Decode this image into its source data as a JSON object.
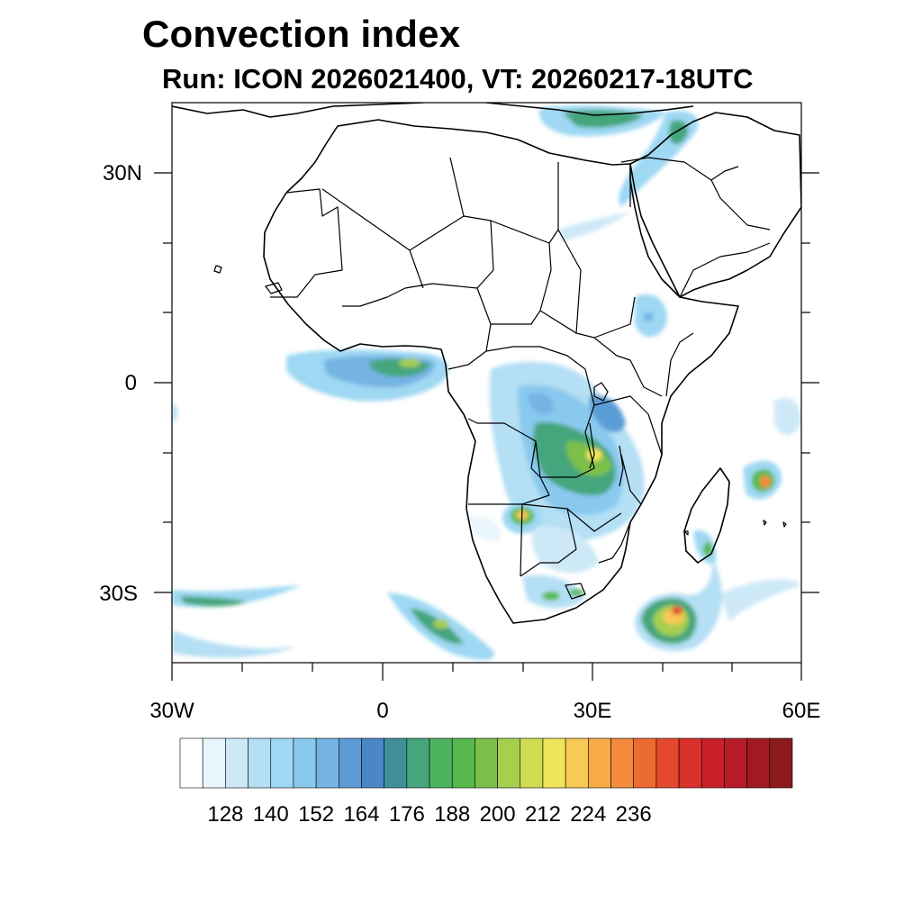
{
  "title": "Convection index",
  "subtitle": "Run: ICON 2026021400,  VT: 20260217-18UTC",
  "map": {
    "lon_range": [
      -30,
      60
    ],
    "lat_range": [
      -40,
      40
    ],
    "y_tick_labels": [
      {
        "lat": 30,
        "label": "30N"
      },
      {
        "lat": 0,
        "label": "0"
      },
      {
        "lat": -30,
        "label": "30S"
      }
    ],
    "x_tick_labels": [
      {
        "lon": -30,
        "label": "30W"
      },
      {
        "lon": 0,
        "label": "0"
      },
      {
        "lon": 30,
        "label": "30E"
      },
      {
        "lon": 60,
        "label": "60E"
      }
    ]
  },
  "colorbar": {
    "colors": [
      "#ffffff",
      "#e8f5fc",
      "#cde9f7",
      "#b4dff4",
      "#9ed8f3",
      "#89c9ee",
      "#74b3e3",
      "#5c9cd6",
      "#4a87c6",
      "#3f8f9b",
      "#45a57c",
      "#4cb25e",
      "#58b84e",
      "#7cbf4b",
      "#a6cf4d",
      "#cfdc52",
      "#f0e45c",
      "#f7c955",
      "#f6ab47",
      "#f38a3c",
      "#ee6a33",
      "#e5482e",
      "#d9302c",
      "#c8212a",
      "#b61c28",
      "#a11a23",
      "#8c1a1d"
    ],
    "labels": [
      "128",
      "140",
      "152",
      "164",
      "176",
      "188",
      "200",
      "212",
      "224",
      "236"
    ]
  },
  "convection_areas": [
    {
      "name": "gulf-of-guinea-band",
      "level": "green-yellow"
    },
    {
      "name": "central-africa-core",
      "level": "green-yellow"
    },
    {
      "name": "mozambique-cyclone",
      "level": "red"
    },
    {
      "name": "madagascar-east",
      "level": "red"
    },
    {
      "name": "south-atlantic-band",
      "level": "green"
    },
    {
      "name": "eastern-med-band",
      "level": "green"
    }
  ]
}
